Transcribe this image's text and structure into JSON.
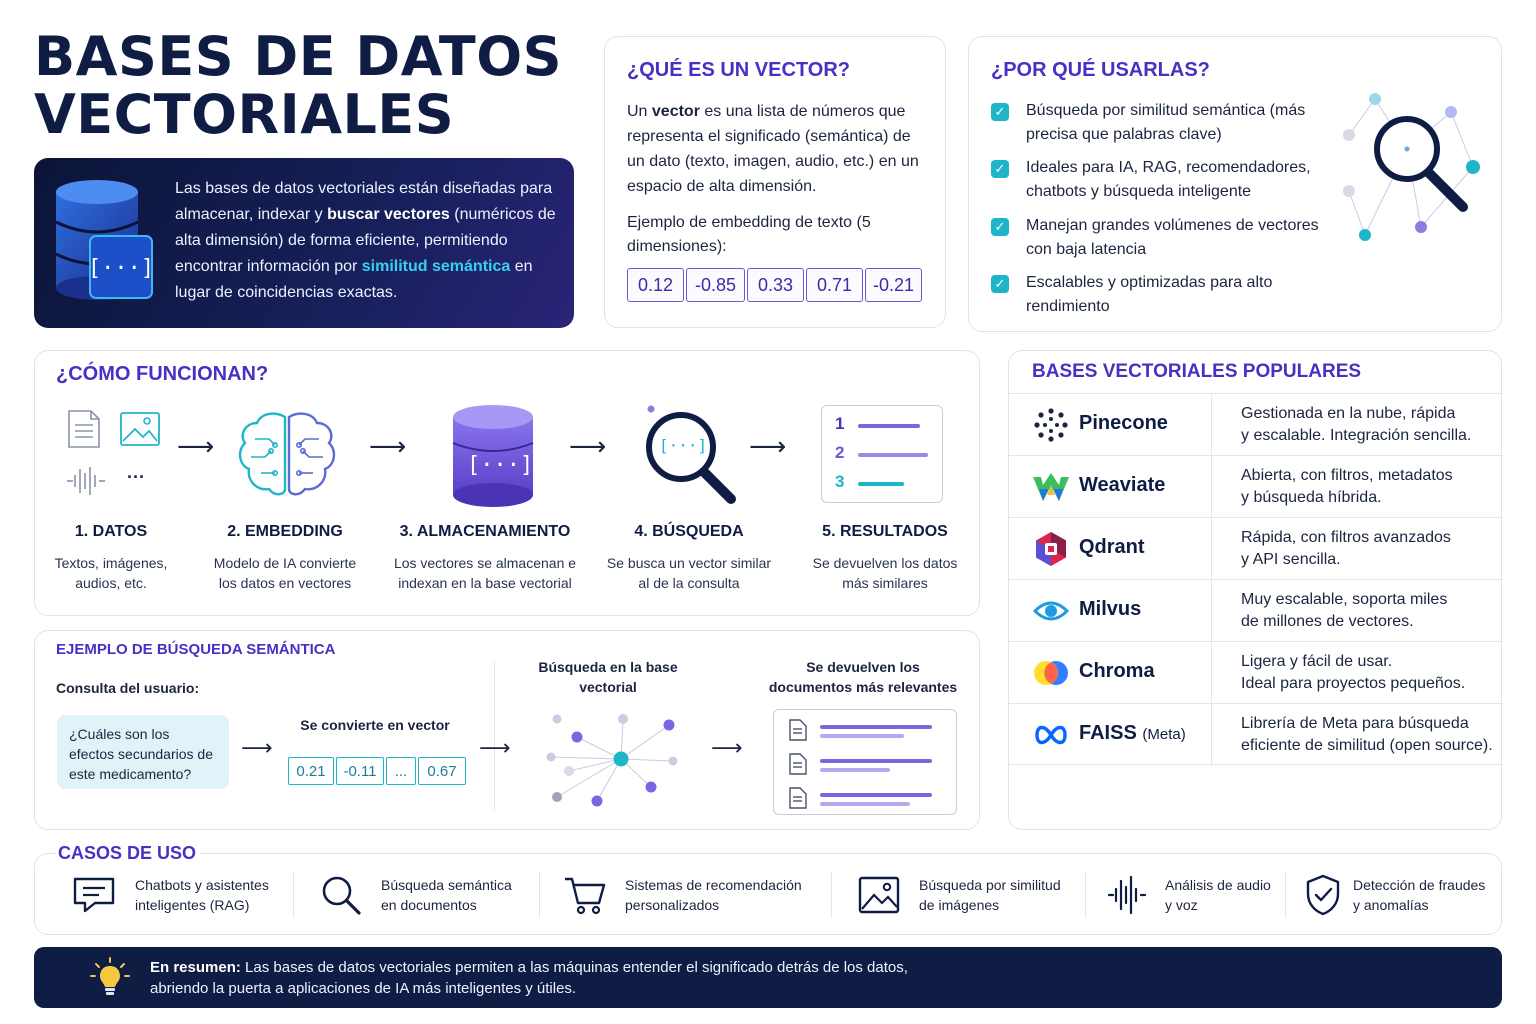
{
  "title": {
    "line1": "BASES DE DATOS",
    "line2": "VECTORIALES"
  },
  "intro": {
    "p1": "Las bases de datos vectoriales están diseñadas para almacenar, indexar y ",
    "b1": "buscar vectores",
    "p2": " (numéricos de alta dimensión) de forma eficiente, permitiendo encontrar información por ",
    "h1": "similitud semántica",
    "p3": " en lugar de coincidencias exactas.",
    "icon_text": "[···]"
  },
  "vector": {
    "title": "¿QUÉ ES UN VECTOR?",
    "d1": "Un ",
    "d_bold": "vector",
    "d2": " es una lista de números que representa el significado (semántica) de un dato (texto, imagen, audio, etc.) en un espacio de alta dimensión.",
    "example": "Ejemplo de embedding de texto (5 dimensiones):",
    "values": [
      "0.12",
      "-0.85",
      "0.33",
      "0.71",
      "-0.21"
    ]
  },
  "why": {
    "title": "¿POR QUÉ USARLAS?",
    "items": [
      "Búsqueda por similitud semántica (más precisa que palabras clave)",
      "Ideales para IA, RAG, recomendadores, chatbots y búsqueda inteligente",
      "Manejan grandes volúmenes de vectores con baja latencia",
      "Escalables y optimizadas para alto rendimiento"
    ]
  },
  "how": {
    "title": "¿CÓMO FUNCIONAN?",
    "dots": "···",
    "store_icon": "[···]",
    "search_icon": "[···]",
    "result_nums": [
      "1",
      "2",
      "3"
    ],
    "steps": [
      {
        "label": "1. DATOS",
        "desc": "Textos, imágenes, audios, etc."
      },
      {
        "label": "2. EMBEDDING",
        "desc": "Modelo de IA convierte los datos en vectores"
      },
      {
        "label": "3. ALMACENAMIENTO",
        "desc": "Los vectores se almacenan e indexan en la base vectorial"
      },
      {
        "label": "4. BÚSQUEDA",
        "desc": "Se busca un vector similar al de la consulta"
      },
      {
        "label": "5. RESULTADOS",
        "desc": "Se devuelven los datos más similares"
      }
    ]
  },
  "example": {
    "title": "EJEMPLO DE BÚSQUEDA SEMÁNTICA",
    "query_label": "Consulta del usuario:",
    "query": "¿Cuáles son los efectos secundarios de este medicamento?",
    "convert": "Se convierte en vector",
    "values": [
      "0.21",
      "-0.11",
      "...",
      "0.67"
    ],
    "search": "Búsqueda en la base vectorial",
    "results": "Se devuelven los documentos más relevantes"
  },
  "popular": {
    "title": "BASES VECTORIALES POPULARES",
    "rows": [
      {
        "name": "Pinecone",
        "suffix": "",
        "desc1": "Gestionada en la nube, rápida",
        "desc2": "y escalable. Integración sencilla."
      },
      {
        "name": "Weaviate",
        "suffix": "",
        "desc1": "Abierta, con filtros, metadatos",
        "desc2": "y búsqueda híbrida."
      },
      {
        "name": "Qdrant",
        "suffix": "",
        "desc1": "Rápida, con filtros avanzados",
        "desc2": "y API sencilla."
      },
      {
        "name": "Milvus",
        "suffix": "",
        "desc1": "Muy escalable, soporta miles",
        "desc2": "de millones de vectores."
      },
      {
        "name": "Chroma",
        "suffix": "",
        "desc1": "Ligera y fácil de usar.",
        "desc2": "Ideal para proyectos pequeños."
      },
      {
        "name": "FAISS",
        "suffix": "(Meta)",
        "desc1": "Librería de Meta para búsqueda",
        "desc2": "eficiente de similitud (open source)."
      }
    ]
  },
  "use_cases": {
    "title": "CASOS DE USO",
    "items": [
      {
        "l1": "Chatbots y asistentes",
        "l2": "inteligentes (RAG)",
        "icon": "chat-icon"
      },
      {
        "l1": "Búsqueda semántica",
        "l2": "en documentos",
        "icon": "search-icon"
      },
      {
        "l1": "Sistemas de recomendación",
        "l2": "personalizados",
        "icon": "cart-icon"
      },
      {
        "l1": "Búsqueda por similitud",
        "l2": "de imágenes",
        "icon": "image-icon"
      },
      {
        "l1": "Análisis de audio",
        "l2": "y voz",
        "icon": "audio-wave-icon"
      },
      {
        "l1": "Detección de fraudes",
        "l2": "y anomalías",
        "icon": "shield-check-icon"
      }
    ]
  },
  "summary": {
    "bold": "En resumen:",
    "l1": " Las bases de datos vectoriales permiten a las máquinas entender el significado detrás de los datos,",
    "l2": "abriendo la puerta a aplicaciones de IA más inteligentes y útiles."
  },
  "colors": {
    "navy": "#0f1d44",
    "purple": "#4b2fc4",
    "cyan": "#1fb5c9"
  }
}
